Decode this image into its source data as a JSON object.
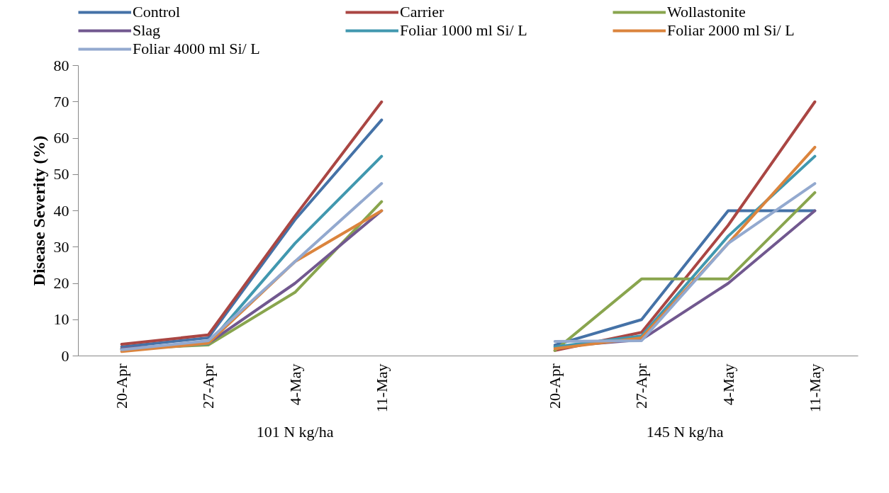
{
  "chart_data": {
    "type": "line",
    "ylabel": "Disease Severity (%)",
    "categories": [
      "20-Apr",
      "27-Apr",
      "4-May",
      "11-May",
      null,
      "20-Apr",
      "27-Apr",
      "4-May",
      "11-May"
    ],
    "annotations": [
      "101 N kg/ha",
      "145 N kg/ha"
    ],
    "ylim": [
      0,
      80
    ],
    "yticks": [
      0,
      10,
      20,
      30,
      40,
      50,
      60,
      70,
      80
    ],
    "grid": false,
    "legend": "top",
    "marker": "none",
    "line_style": "solid",
    "series": [
      {
        "name": "Control",
        "color": "#4572a7",
        "values": [
          2.5,
          5,
          37.5,
          65,
          null,
          3,
          10,
          40,
          40
        ]
      },
      {
        "name": "Carrier",
        "color": "#aa4643",
        "values": [
          3.2,
          5.8,
          38.5,
          70,
          null,
          1.5,
          6.5,
          36,
          70
        ]
      },
      {
        "name": "Wollastonite",
        "color": "#89a54e",
        "values": [
          2,
          3,
          17.5,
          42.5,
          null,
          1.5,
          21.2,
          21.2,
          45
        ]
      },
      {
        "name": "Slag",
        "color": "#71588f",
        "values": [
          2,
          3.5,
          20,
          40,
          null,
          2.5,
          4.5,
          20,
          40
        ]
      },
      {
        "name": "Foliar 1000 ml Si/ L",
        "color": "#4198af",
        "values": [
          1.7,
          3.3,
          31,
          55,
          null,
          2.5,
          5.5,
          33,
          55
        ]
      },
      {
        "name": "Foliar 2000 ml Si/ L",
        "color": "#db843d",
        "values": [
          1.2,
          3.5,
          26,
          40,
          null,
          2,
          5,
          31,
          57.5
        ]
      },
      {
        "name": "Foliar 4000 ml Si/ L",
        "color": "#93a9cf",
        "values": [
          1.7,
          4.2,
          26,
          47.5,
          null,
          4,
          4.2,
          31,
          47.5
        ]
      }
    ]
  }
}
